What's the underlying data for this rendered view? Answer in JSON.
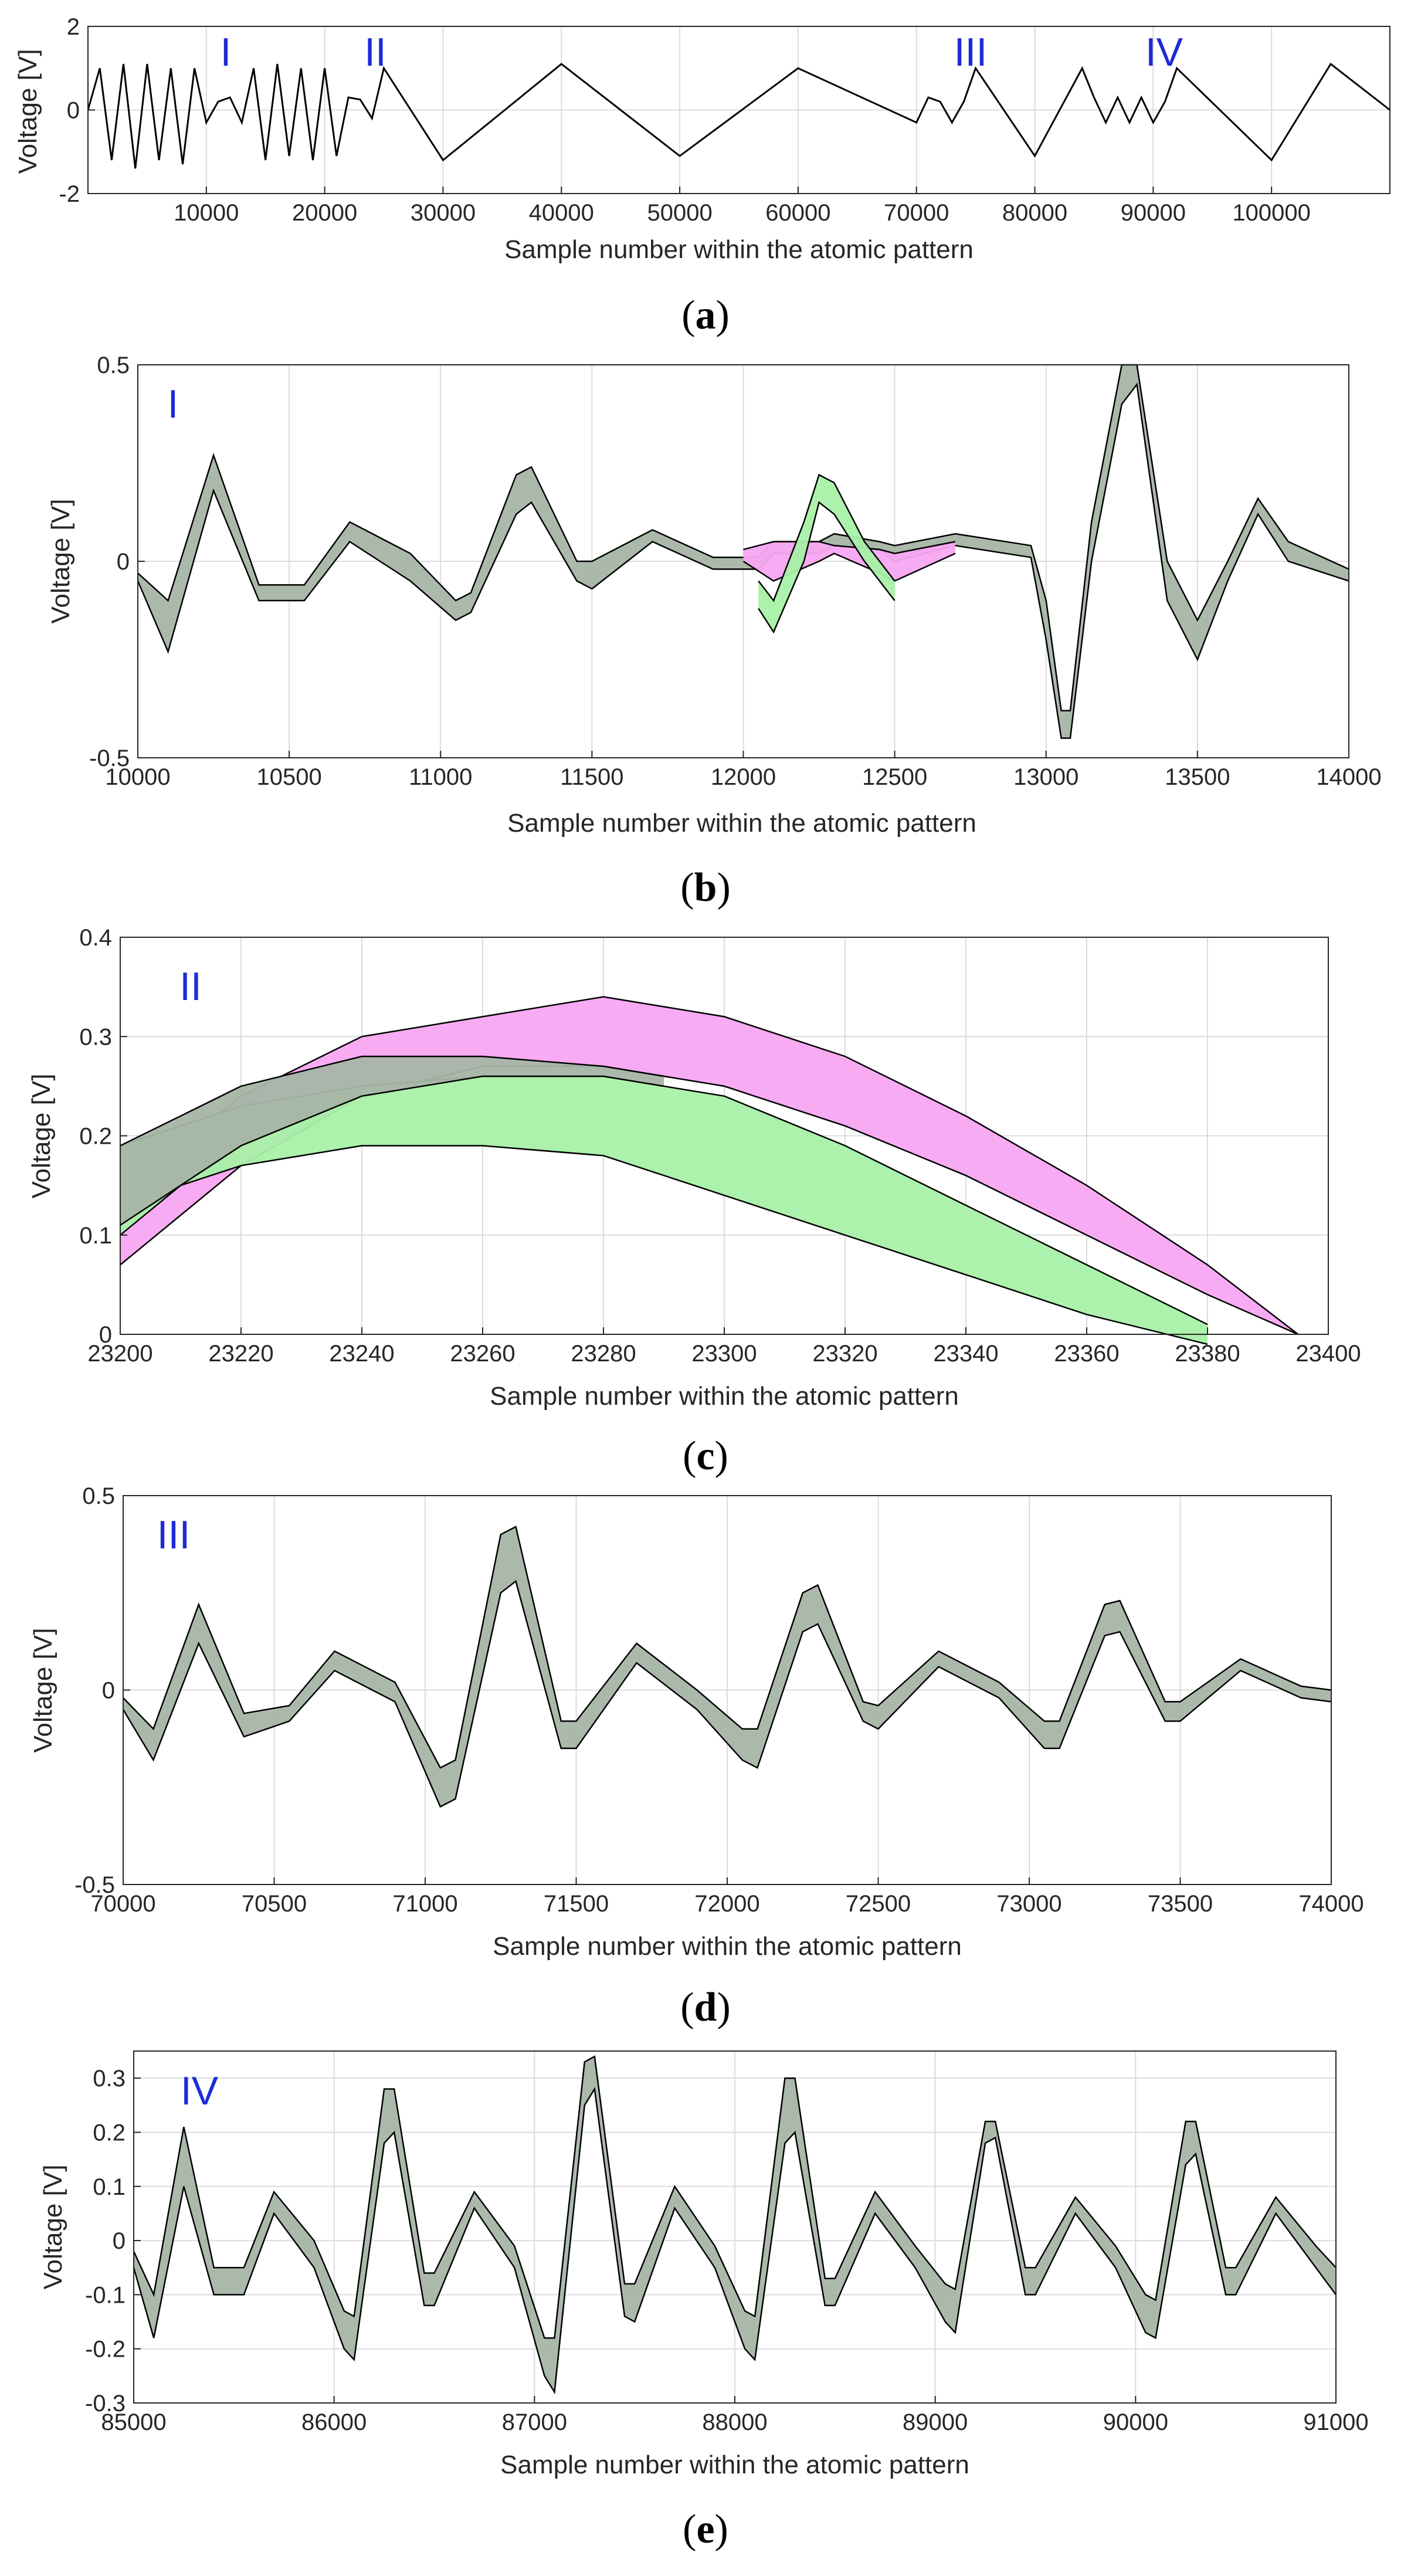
{
  "figure": {
    "colors": {
      "trace": "#000000",
      "band_magenta": "#f7a6f2",
      "band_green": "#a8f0a8",
      "band_overlap": "#a7b5a7",
      "region_label": "#1f2bd6",
      "axes_bg": "#ffffff",
      "grid": "#dcdcdc"
    },
    "panels": [
      {
        "caption_letter": "a",
        "caption_before": "(",
        "caption_after": ")",
        "region_labels": [
          "I",
          "II",
          "III",
          "IV"
        ]
      },
      {
        "caption_letter": "b",
        "caption_before": "(",
        "caption_after": ")",
        "region_label": "I"
      },
      {
        "caption_letter": "c",
        "caption_before": "(",
        "caption_after": ")",
        "region_label": "II"
      },
      {
        "caption_letter": "d",
        "caption_before": "(",
        "caption_after": ")",
        "region_label": "III"
      },
      {
        "caption_letter": "e",
        "caption_before": "(",
        "caption_after": ")",
        "region_label": "IV"
      }
    ]
  },
  "chart_data": [
    {
      "type": "line",
      "panel": "a",
      "xlabel": "Sample number within the atomic pattern",
      "ylabel": "Voltage [V]",
      "xlim": [
        0,
        110000
      ],
      "ylim": [
        -2,
        2
      ],
      "xticks": [
        10000,
        20000,
        30000,
        40000,
        50000,
        60000,
        70000,
        80000,
        90000,
        100000
      ],
      "yticks": [
        -2,
        0,
        2
      ],
      "grid": true,
      "series": [
        {
          "values": [
            [
              0,
              0
            ],
            [
              1000,
              1.0
            ],
            [
              2000,
              -1.2
            ],
            [
              3000,
              1.1
            ],
            [
              4000,
              -1.4
            ],
            [
              5000,
              1.1
            ],
            [
              6000,
              -1.2
            ],
            [
              7000,
              1.0
            ],
            [
              8000,
              -1.3
            ],
            [
              9000,
              1.0
            ],
            [
              10000,
              -0.3
            ],
            [
              11000,
              0.2
            ],
            [
              12000,
              0.3
            ],
            [
              13000,
              -0.3
            ],
            [
              14000,
              1.0
            ],
            [
              15000,
              -1.2
            ],
            [
              16000,
              1.1
            ],
            [
              17000,
              -1.1
            ],
            [
              18000,
              1.0
            ],
            [
              19000,
              -1.2
            ],
            [
              20000,
              1.0
            ],
            [
              21000,
              -1.1
            ],
            [
              22000,
              0.3
            ],
            [
              23000,
              0.25
            ],
            [
              24000,
              -0.2
            ],
            [
              25000,
              1.0
            ],
            [
              30000,
              -1.2
            ],
            [
              40000,
              1.1
            ],
            [
              50000,
              -1.1
            ],
            [
              60000,
              1.0
            ],
            [
              70000,
              -0.3
            ],
            [
              71000,
              0.3
            ],
            [
              72000,
              0.2
            ],
            [
              73000,
              -0.3
            ],
            [
              74000,
              0.2
            ],
            [
              75000,
              1.0
            ],
            [
              80000,
              -1.1
            ],
            [
              84000,
              1.0
            ],
            [
              85000,
              0.3
            ],
            [
              86000,
              -0.3
            ],
            [
              87000,
              0.3
            ],
            [
              88000,
              -0.3
            ],
            [
              89000,
              0.3
            ],
            [
              90000,
              -0.3
            ],
            [
              91000,
              0.2
            ],
            [
              92000,
              1.0
            ],
            [
              100000,
              -1.2
            ],
            [
              105000,
              1.1
            ],
            [
              110000,
              0
            ]
          ]
        }
      ],
      "annotations": [
        {
          "text": "I",
          "x": 11500
        },
        {
          "text": "II",
          "x": 24000
        },
        {
          "text": "III",
          "x": 73500
        },
        {
          "text": "IV",
          "x": 89500
        }
      ]
    },
    {
      "type": "area",
      "panel": "b",
      "xlabel": "Sample number within the atomic pattern",
      "ylabel": "Voltage [V]",
      "xlim": [
        10000,
        14000
      ],
      "ylim": [
        -0.5,
        0.5
      ],
      "xticks": [
        10000,
        10500,
        11000,
        11500,
        12000,
        12500,
        13000,
        13500,
        14000
      ],
      "yticks": [
        -0.5,
        0,
        0.5
      ],
      "grid": true,
      "annotation": "I",
      "series": [
        {
          "x": [
            10000,
            10100,
            10250,
            10400,
            10550,
            10700,
            10900,
            11050,
            11100,
            11250,
            11300,
            11450,
            11500,
            11700,
            11900,
            12050,
            12100,
            12250,
            12300,
            12450,
            12500,
            12700,
            12950,
            13000,
            13050,
            13080,
            13150,
            13250,
            13300,
            13400,
            13500,
            13600,
            13700,
            13800,
            14000
          ],
          "lower": [
            -0.05,
            -0.23,
            0.18,
            -0.1,
            -0.1,
            0.05,
            -0.05,
            -0.15,
            -0.13,
            0.12,
            0.15,
            -0.05,
            -0.07,
            0.05,
            -0.02,
            -0.02,
            0.02,
            0.02,
            0.04,
            0.03,
            0.0,
            0.04,
            0.01,
            -0.2,
            -0.45,
            -0.45,
            0.0,
            0.4,
            0.45,
            -0.1,
            -0.25,
            -0.05,
            0.12,
            0.0,
            -0.05
          ],
          "upper": [
            -0.03,
            -0.1,
            0.27,
            -0.06,
            -0.06,
            0.1,
            0.02,
            -0.1,
            -0.08,
            0.22,
            0.24,
            0.0,
            0.0,
            0.08,
            0.01,
            0.01,
            0.05,
            0.05,
            0.07,
            0.05,
            0.04,
            0.07,
            0.04,
            -0.1,
            -0.38,
            -0.38,
            0.1,
            0.5,
            0.5,
            0.0,
            -0.15,
            0.0,
            0.16,
            0.05,
            -0.02
          ],
          "color": "band_overlap"
        },
        {
          "x": [
            12000,
            12100,
            12250,
            12300,
            12450,
            12500,
            12700
          ],
          "lower": [
            0.0,
            -0.05,
            0.0,
            0.02,
            -0.03,
            -0.05,
            0.02
          ],
          "upper": [
            0.03,
            0.05,
            0.05,
            0.04,
            0.03,
            0.02,
            0.05
          ],
          "color": "band_magenta"
        },
        {
          "x": [
            12050,
            12100,
            12200,
            12250,
            12300,
            12400,
            12500
          ],
          "lower": [
            -0.12,
            -0.18,
            0.0,
            0.15,
            0.12,
            0.0,
            -0.1
          ],
          "upper": [
            -0.05,
            -0.1,
            0.1,
            0.22,
            0.2,
            0.05,
            -0.05
          ],
          "color": "band_green"
        }
      ]
    },
    {
      "type": "area",
      "panel": "c",
      "xlabel": "Sample number within the atomic pattern",
      "ylabel": "Voltage [V]",
      "xlim": [
        23200,
        23400
      ],
      "ylim": [
        0,
        0.4
      ],
      "xticks": [
        23200,
        23220,
        23240,
        23260,
        23280,
        23300,
        23320,
        23340,
        23360,
        23380,
        23400
      ],
      "yticks": [
        0,
        0.1,
        0.2,
        0.3,
        0.4
      ],
      "grid": true,
      "annotation": "II",
      "series": [
        {
          "x": [
            23200,
            23210,
            23220,
            23240,
            23260,
            23280,
            23300,
            23320,
            23340,
            23360,
            23380,
            23395
          ],
          "lower": [
            0.07,
            0.12,
            0.17,
            0.24,
            0.27,
            0.27,
            0.25,
            0.21,
            0.16,
            0.1,
            0.04,
            0.0
          ],
          "upper": [
            0.11,
            0.19,
            0.24,
            0.3,
            0.32,
            0.34,
            0.32,
            0.28,
            0.22,
            0.15,
            0.07,
            0.0
          ],
          "color": "band_magenta"
        },
        {
          "x": [
            23200,
            23210,
            23220,
            23240,
            23260,
            23280,
            23300,
            23320,
            23340,
            23360,
            23380
          ],
          "lower": [
            0.1,
            0.15,
            0.17,
            0.19,
            0.19,
            0.18,
            0.14,
            0.1,
            0.06,
            0.02,
            -0.01
          ],
          "upper": [
            0.19,
            0.21,
            0.23,
            0.25,
            0.26,
            0.26,
            0.24,
            0.19,
            0.13,
            0.07,
            0.01
          ],
          "color": "band_green"
        },
        {
          "x": [
            23200,
            23210,
            23220,
            23240,
            23260,
            23280,
            23290
          ],
          "lower": [
            0.11,
            0.15,
            0.19,
            0.24,
            0.26,
            0.26,
            0.25
          ],
          "upper": [
            0.19,
            0.22,
            0.25,
            0.28,
            0.28,
            0.27,
            0.26
          ],
          "color": "band_overlap"
        }
      ]
    },
    {
      "type": "area",
      "panel": "d",
      "xlabel": "Sample number within the atomic pattern",
      "ylabel": "Voltage [V]",
      "xlim": [
        70000,
        74000
      ],
      "ylim": [
        -0.5,
        0.5
      ],
      "xticks": [
        70000,
        70500,
        71000,
        71500,
        72000,
        72500,
        73000,
        73500,
        74000
      ],
      "yticks": [
        -0.5,
        0,
        0.5
      ],
      "grid": true,
      "annotation": "III",
      "series": [
        {
          "x": [
            70000,
            70100,
            70250,
            70400,
            70550,
            70700,
            70900,
            71050,
            71100,
            71250,
            71300,
            71450,
            71500,
            71700,
            71900,
            72050,
            72100,
            72250,
            72300,
            72450,
            72500,
            72700,
            72900,
            73050,
            73100,
            73250,
            73300,
            73450,
            73500,
            73700,
            73900,
            74000
          ],
          "lower": [
            -0.05,
            -0.18,
            0.12,
            -0.12,
            -0.08,
            0.05,
            -0.03,
            -0.3,
            -0.28,
            0.25,
            0.28,
            -0.15,
            -0.15,
            0.07,
            -0.05,
            -0.18,
            -0.2,
            0.15,
            0.17,
            -0.08,
            -0.1,
            0.06,
            -0.02,
            -0.15,
            -0.15,
            0.14,
            0.15,
            -0.08,
            -0.08,
            0.05,
            -0.02,
            -0.03
          ],
          "upper": [
            -0.02,
            -0.1,
            0.22,
            -0.06,
            -0.04,
            0.1,
            0.02,
            -0.2,
            -0.18,
            0.4,
            0.42,
            -0.08,
            -0.08,
            0.12,
            0.0,
            -0.1,
            -0.1,
            0.25,
            0.27,
            -0.03,
            -0.04,
            0.1,
            0.02,
            -0.08,
            -0.08,
            0.22,
            0.23,
            -0.03,
            -0.03,
            0.08,
            0.01,
            0.0
          ],
          "color": "band_overlap"
        }
      ]
    },
    {
      "type": "area",
      "panel": "e",
      "xlabel": "Sample number within the atomic pattern",
      "ylabel": "Voltage [V]",
      "xlim": [
        85000,
        91000
      ],
      "ylim": [
        -0.3,
        0.35
      ],
      "xticks": [
        85000,
        86000,
        87000,
        88000,
        89000,
        90000,
        91000
      ],
      "yticks": [
        -0.3,
        -0.2,
        -0.1,
        0,
        0.1,
        0.2,
        0.3
      ],
      "grid": true,
      "annotation": "IV",
      "series": [
        {
          "x": [
            85000,
            85100,
            85250,
            85400,
            85550,
            85700,
            85900,
            86050,
            86100,
            86250,
            86300,
            86450,
            86500,
            86700,
            86900,
            87050,
            87100,
            87250,
            87300,
            87450,
            87500,
            87700,
            87900,
            88050,
            88100,
            88250,
            88300,
            88450,
            88500,
            88700,
            88900,
            89050,
            89100,
            89250,
            89300,
            89450,
            89500,
            89700,
            89900,
            90050,
            90100,
            90250,
            90300,
            90450,
            90500,
            90700,
            90900,
            91000
          ],
          "lower": [
            -0.05,
            -0.18,
            0.1,
            -0.1,
            -0.1,
            0.05,
            -0.05,
            -0.2,
            -0.22,
            0.18,
            0.2,
            -0.12,
            -0.12,
            0.06,
            -0.05,
            -0.25,
            -0.28,
            0.25,
            0.28,
            -0.14,
            -0.15,
            0.06,
            -0.05,
            -0.2,
            -0.22,
            0.18,
            0.2,
            -0.12,
            -0.12,
            0.05,
            -0.05,
            -0.15,
            -0.17,
            0.18,
            0.19,
            -0.1,
            -0.1,
            0.05,
            -0.05,
            -0.17,
            -0.18,
            0.14,
            0.16,
            -0.1,
            -0.1,
            0.05,
            -0.05,
            -0.1
          ],
          "upper": [
            -0.02,
            -0.1,
            0.21,
            -0.05,
            -0.05,
            0.09,
            0.0,
            -0.13,
            -0.14,
            0.28,
            0.28,
            -0.06,
            -0.06,
            0.09,
            -0.01,
            -0.18,
            -0.18,
            0.33,
            0.34,
            -0.08,
            -0.08,
            0.1,
            -0.01,
            -0.13,
            -0.14,
            0.3,
            0.3,
            -0.07,
            -0.07,
            0.09,
            -0.01,
            -0.08,
            -0.09,
            0.22,
            0.22,
            -0.05,
            -0.05,
            0.08,
            -0.01,
            -0.1,
            -0.11,
            0.22,
            0.22,
            -0.05,
            -0.05,
            0.08,
            -0.01,
            -0.05
          ],
          "color": "band_overlap"
        }
      ]
    }
  ]
}
